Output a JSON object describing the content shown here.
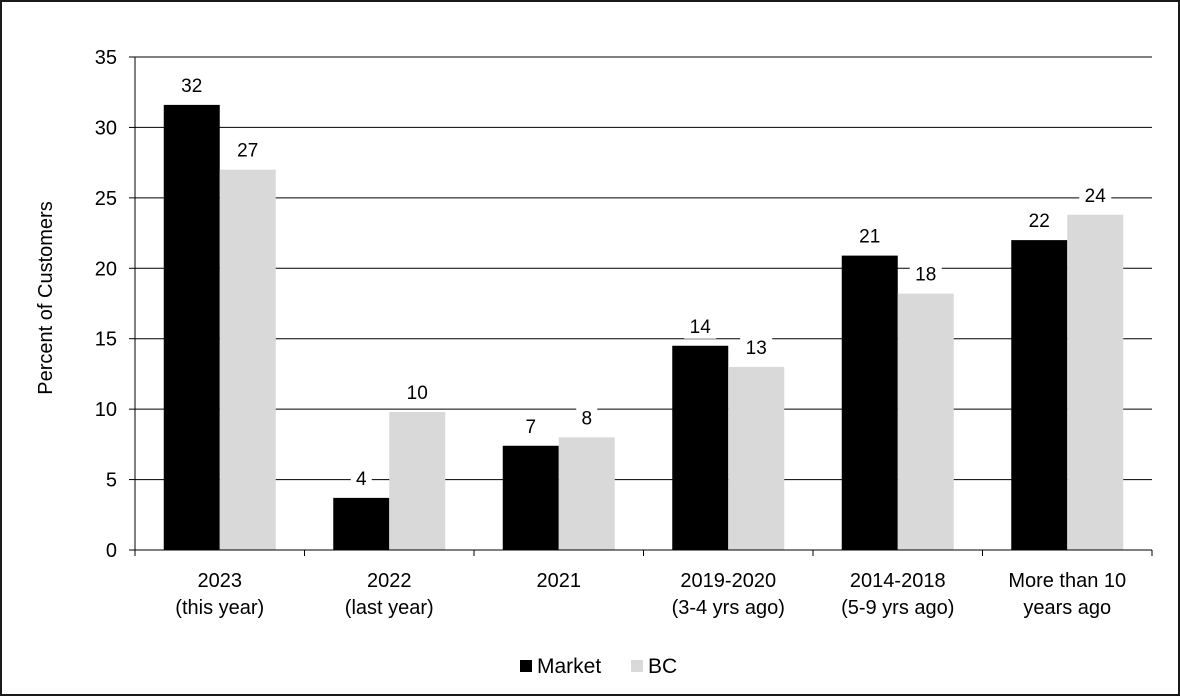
{
  "chart_data": {
    "type": "bar",
    "title": "",
    "xlabel": "",
    "ylabel": "Percent of Customers",
    "ylim": [
      0,
      35
    ],
    "yticks": [
      "0",
      "5",
      "10",
      "15",
      "20",
      "25",
      "30",
      "35"
    ],
    "grid": true,
    "legend_position": "bottom",
    "categories": [
      [
        "2023",
        "(this year)"
      ],
      [
        "2022",
        "(last year)"
      ],
      [
        "2021"
      ],
      [
        "2019-2020",
        "(3-4 yrs ago)"
      ],
      [
        "2014-2018",
        "(5-9 yrs ago)"
      ],
      [
        "More than 10",
        "years ago"
      ]
    ],
    "series": [
      {
        "name": "Market",
        "color": "#000000",
        "values": [
          31.6,
          3.7,
          7.4,
          14.5,
          20.9,
          22.0
        ],
        "labels": [
          "32",
          "4",
          "7",
          "14",
          "21",
          "22"
        ]
      },
      {
        "name": "BC",
        "color": "#d9d9d9",
        "values": [
          27.0,
          9.8,
          8.0,
          13.0,
          18.2,
          23.8
        ],
        "labels": [
          "27",
          "10",
          "8",
          "13",
          "18",
          "24"
        ]
      }
    ]
  }
}
